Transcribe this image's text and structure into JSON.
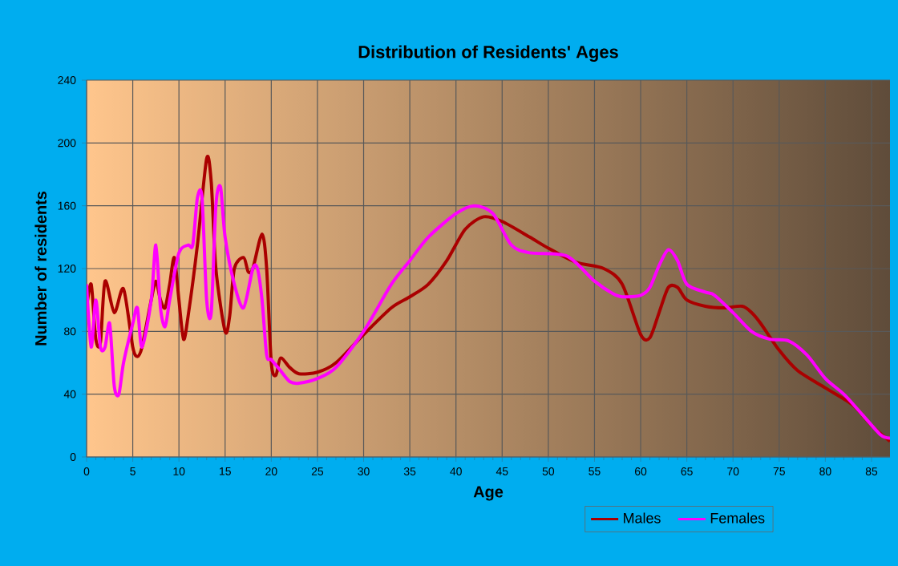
{
  "chart_data": {
    "type": "line",
    "title": "Distribution of Residents' Ages",
    "xlabel": "Age",
    "ylabel": "Number of residents",
    "xlim": [
      0,
      87
    ],
    "xticks": [
      0,
      5,
      10,
      15,
      20,
      25,
      30,
      35,
      40,
      45,
      50,
      55,
      60,
      65,
      70,
      75,
      80,
      85
    ],
    "ylim": [
      0,
      240
    ],
    "yticks": [
      0,
      40,
      80,
      120,
      160,
      200,
      240
    ],
    "grid": true,
    "legend": "bottom right",
    "marker": "none",
    "line_style": "solid",
    "series": [
      {
        "name": "Males",
        "color": "#aa0000",
        "x": [
          0,
          0.5,
          1,
          1.5,
          2,
          3,
          4,
          5,
          5.5,
          6,
          7,
          7.5,
          8,
          8.5,
          9,
          9.5,
          10,
          10.5,
          11,
          12,
          13,
          13.5,
          14,
          15,
          15.5,
          16,
          17,
          17.5,
          18,
          19,
          19.5,
          20,
          20.5,
          21,
          22,
          23,
          25,
          27,
          30,
          33,
          35,
          37,
          39,
          41,
          43,
          45,
          48,
          50,
          53,
          56,
          58,
          60,
          61,
          62,
          63,
          64,
          65,
          67,
          69,
          71,
          72,
          73,
          75,
          77,
          80,
          83,
          85,
          87
        ],
        "values": [
          95,
          110,
          75,
          73,
          112,
          92,
          107,
          70,
          64,
          70,
          100,
          112,
          100,
          95,
          110,
          127,
          100,
          75,
          90,
          135,
          190,
          175,
          120,
          80,
          90,
          120,
          127,
          118,
          120,
          142,
          120,
          60,
          52,
          63,
          57,
          53,
          54,
          60,
          78,
          95,
          102,
          110,
          125,
          145,
          153,
          150,
          140,
          133,
          124,
          120,
          110,
          78,
          76,
          92,
          108,
          108,
          100,
          96,
          95,
          96,
          92,
          85,
          68,
          55,
          44,
          33,
          20,
          10
        ]
      },
      {
        "name": "Females",
        "color": "#ff00ff",
        "x": [
          0,
          0.5,
          1,
          1.5,
          2,
          2.5,
          3,
          3.5,
          4,
          5,
          5.5,
          6,
          7,
          7.5,
          8,
          8.5,
          9,
          10,
          11,
          11.5,
          12,
          12.5,
          13,
          13.5,
          14,
          14.5,
          15,
          16,
          17,
          18,
          18.5,
          19,
          19.5,
          20,
          21,
          22,
          23,
          25,
          27,
          30,
          33,
          35,
          37,
          40,
          42,
          44,
          46,
          48,
          52,
          55,
          57,
          58,
          60,
          61,
          62,
          63,
          64,
          65,
          67,
          68,
          70,
          72,
          74,
          76,
          78,
          80,
          82,
          84,
          86,
          87
        ],
        "values": [
          110,
          70,
          100,
          70,
          70,
          85,
          45,
          40,
          60,
          85,
          95,
          70,
          100,
          135,
          95,
          83,
          100,
          130,
          135,
          135,
          165,
          165,
          100,
          92,
          160,
          172,
          140,
          110,
          95,
          120,
          120,
          100,
          65,
          62,
          55,
          48,
          47,
          50,
          57,
          80,
          110,
          125,
          140,
          155,
          160,
          155,
          135,
          130,
          128,
          112,
          104,
          102,
          103,
          108,
          122,
          132,
          125,
          110,
          105,
          103,
          92,
          80,
          75,
          74,
          65,
          50,
          40,
          27,
          14,
          12
        ]
      }
    ]
  }
}
